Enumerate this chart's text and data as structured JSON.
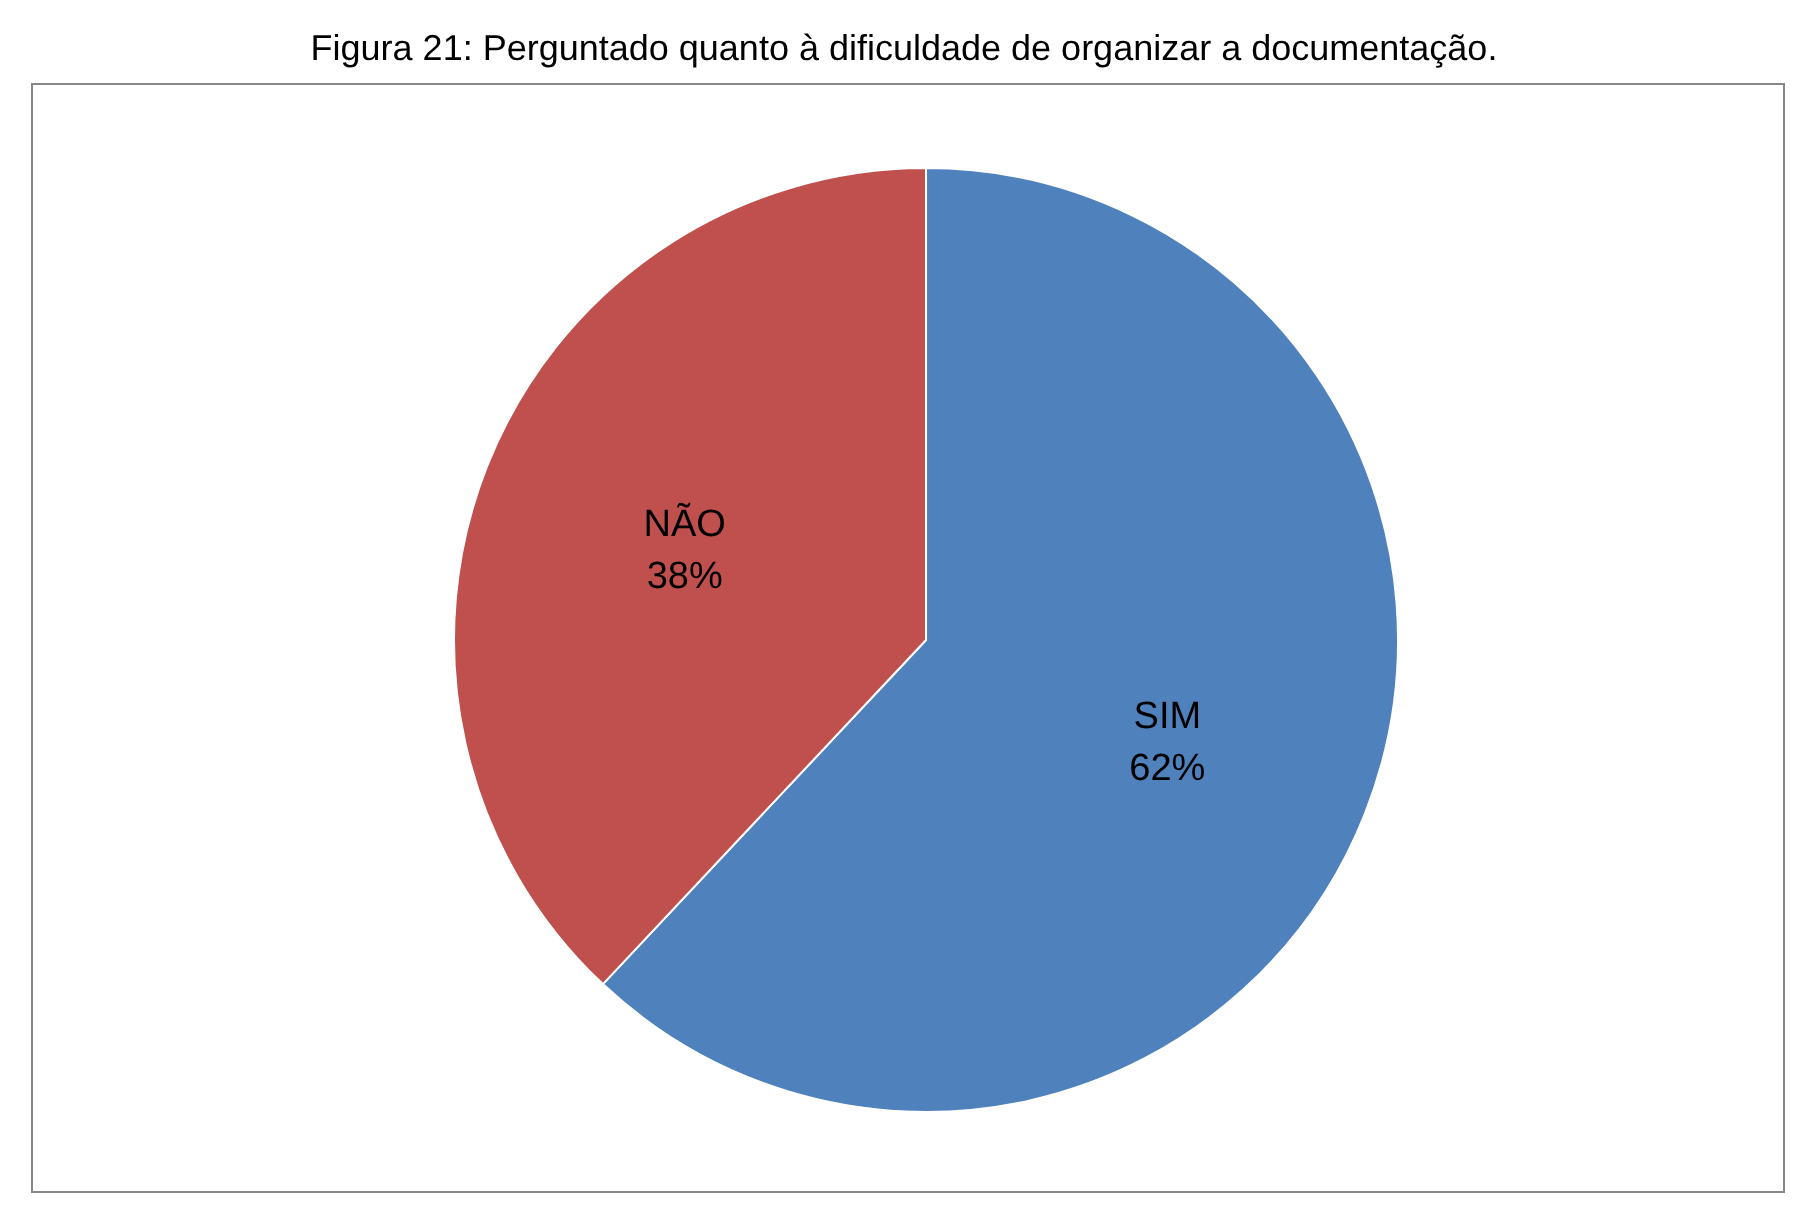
{
  "chart_data": {
    "type": "pie",
    "title": "Figura 21: Perguntado quanto à dificuldade de organizar a documentação.",
    "categories": [
      "SIM",
      "NÃO"
    ],
    "values": [
      62,
      38
    ],
    "value_labels": [
      "62%",
      "38%"
    ],
    "colors": [
      "#4f81bd",
      "#c0504d"
    ]
  }
}
